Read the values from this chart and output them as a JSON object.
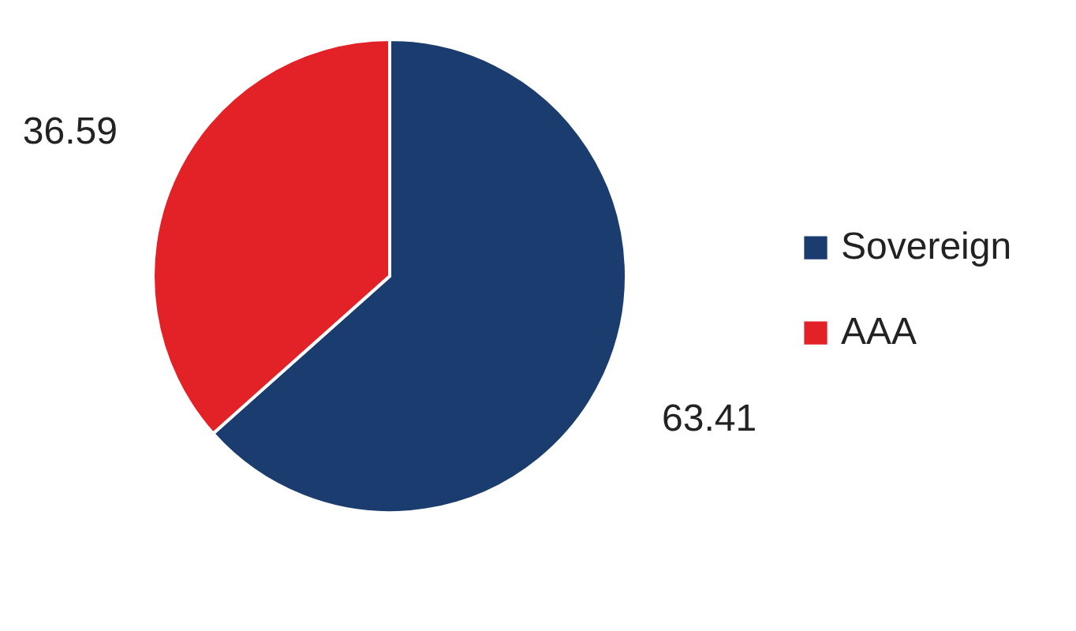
{
  "chart_data": {
    "type": "pie",
    "categories": [
      "Sovereign",
      "AAA"
    ],
    "values": [
      63.41,
      36.59
    ],
    "colors": [
      "#1a3c6e",
      "#e32228"
    ],
    "data_labels": true,
    "legend": "right"
  }
}
